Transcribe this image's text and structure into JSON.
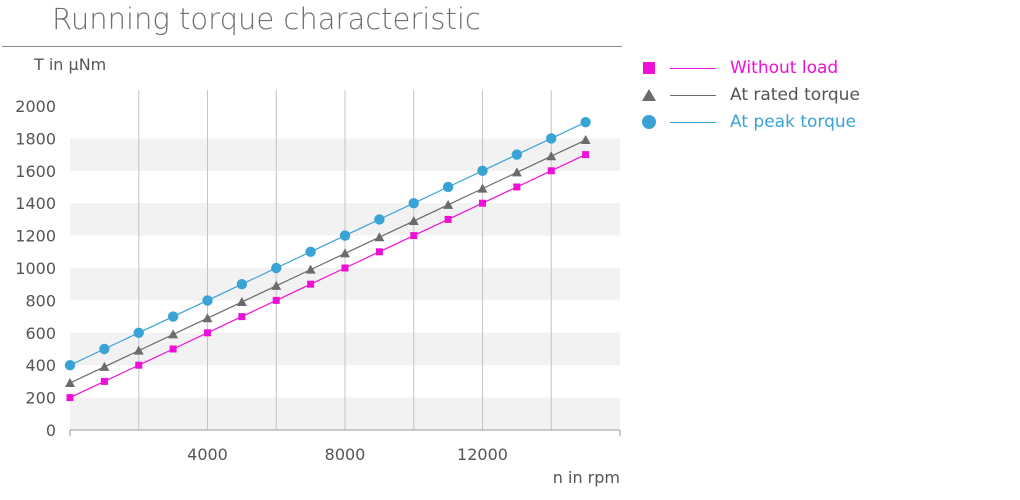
{
  "chart_data": {
    "type": "line",
    "title": "Running torque characteristic",
    "ylabel": "T in µNm",
    "xlabel": "n in rpm",
    "xlim": [
      0,
      16000
    ],
    "ylim": [
      0,
      2000
    ],
    "yticks": [
      "0",
      "200",
      "400",
      "600",
      "800",
      "1000",
      "1200",
      "1400",
      "1600",
      "1800",
      "2000"
    ],
    "xticks": [
      "4000",
      "8000",
      "12000"
    ],
    "grid": "horizontal bands and vertical lines",
    "legend_position": "right",
    "x": [
      0,
      1000,
      2000,
      3000,
      4000,
      5000,
      6000,
      7000,
      8000,
      9000,
      10000,
      11000,
      12000,
      13000,
      14000,
      15000
    ],
    "series": [
      {
        "name": "Without load",
        "color": "#ee10d6",
        "marker": "square",
        "values": [
          200,
          300,
          400,
          500,
          600,
          700,
          800,
          900,
          1000,
          1100,
          1200,
          1300,
          1400,
          1500,
          1600,
          1700
        ]
      },
      {
        "name": "At rated torque",
        "color": "#6b6b6b",
        "marker": "triangle",
        "values": [
          290,
          390,
          490,
          590,
          690,
          790,
          890,
          990,
          1090,
          1190,
          1290,
          1390,
          1490,
          1590,
          1690,
          1790
        ]
      },
      {
        "name": "At peak torque",
        "color": "#3aa3d6",
        "marker": "circle",
        "values": [
          400,
          500,
          600,
          700,
          800,
          900,
          1000,
          1100,
          1200,
          1300,
          1400,
          1500,
          1600,
          1700,
          1800,
          1900
        ]
      }
    ]
  }
}
